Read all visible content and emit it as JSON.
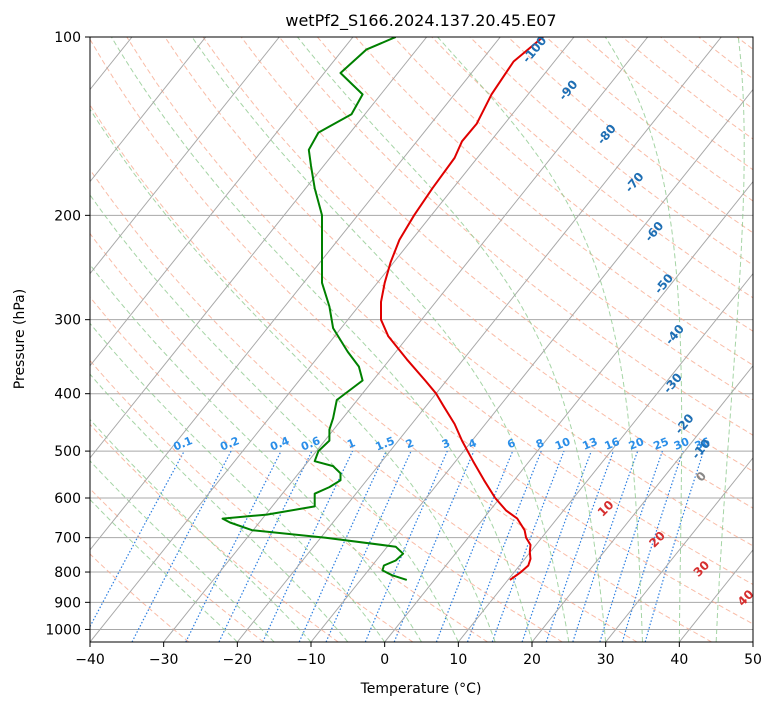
{
  "chart_data": {
    "type": "line",
    "title": "wetPf2_S166.2024.137.20.45.E07",
    "xlabel": "Temperature (°C)",
    "ylabel": "Pressure (hPa)",
    "xlim": [
      -40,
      50
    ],
    "ylim": [
      1050,
      100
    ],
    "y_scale": "log",
    "x_ticks": [
      -40,
      -30,
      -20,
      -10,
      0,
      10,
      20,
      30,
      40,
      50
    ],
    "y_ticks": [
      100,
      200,
      300,
      400,
      500,
      600,
      700,
      800,
      900,
      1000
    ],
    "grid": true,
    "colors": {
      "temperature": "#e00000",
      "dewpoint": "#008000",
      "isotherm": "#a8a8a8",
      "dry_adiabat": "#f7a58a",
      "moist_adiabat": "#8fc98f",
      "mixing_ratio": "#2a7de0",
      "dry_adiabat_label": "#d62f2f",
      "moist_label": "#1f6fb4",
      "mixing_label": "#2a8ee8"
    },
    "temperature": {
      "p": [
        825,
        800,
        780,
        760,
        740,
        720,
        700,
        680,
        650,
        630,
        600,
        560,
        520,
        480,
        450,
        420,
        400,
        380,
        350,
        320,
        300,
        280,
        260,
        240,
        220,
        200,
        180,
        160,
        150,
        140,
        125,
        110,
        100
      ],
      "t": [
        17,
        18.5,
        19.5,
        19.8,
        19.7,
        19.8,
        19.2,
        19,
        18,
        16.5,
        15,
        13.5,
        12,
        10.5,
        9.5,
        8,
        7,
        5.5,
        3,
        0.5,
        -0.5,
        -0.5,
        0,
        0.8,
        2,
        4,
        6.5,
        9.5,
        10.5,
        12.5,
        14.5,
        17.5,
        21.5
      ]
    },
    "dewpoint": {
      "p": [
        825,
        810,
        795,
        780,
        765,
        745,
        725,
        700,
        680,
        660,
        650,
        640,
        620,
        600,
        590,
        575,
        560,
        545,
        530,
        520,
        500,
        480,
        460,
        440,
        410,
        380,
        360,
        340,
        310,
        285,
        260,
        230,
        200,
        180,
        165,
        155,
        145,
        135,
        125,
        115,
        105,
        100
      ],
      "t": [
        3,
        1,
        -0.3,
        -0.1,
        1.5,
        2.5,
        1.5,
        -8,
        -18,
        -21,
        -22,
        -16,
        -9.5,
        -9.5,
        -9.5,
        -7.5,
        -6,
        -6,
        -7,
        -9.5,
        -9,
        -7.5,
        -7.5,
        -7,
        -6.5,
        -3,
        -3.5,
        -5,
        -7,
        -7.5,
        -8.5,
        -8.5,
        -8.5,
        -9.5,
        -10,
        -10.3,
        -9,
        -4.5,
        -3,
        -6,
        -2.5,
        1.5
      ]
    },
    "moist_labels": [
      "-100",
      "-90",
      "-80",
      "-70",
      "-60",
      "-50",
      "-40",
      "-30",
      "-20",
      "-10",
      "0"
    ],
    "dry_labels": [
      "10",
      "20",
      "30",
      "40"
    ],
    "mixing_labels": [
      "0.1",
      "0.2",
      "0.4",
      "0.6",
      "1",
      "1.5",
      "2",
      "3",
      "4",
      "6",
      "8",
      "10",
      "13",
      "16",
      "20",
      "25",
      "30",
      "36"
    ]
  }
}
